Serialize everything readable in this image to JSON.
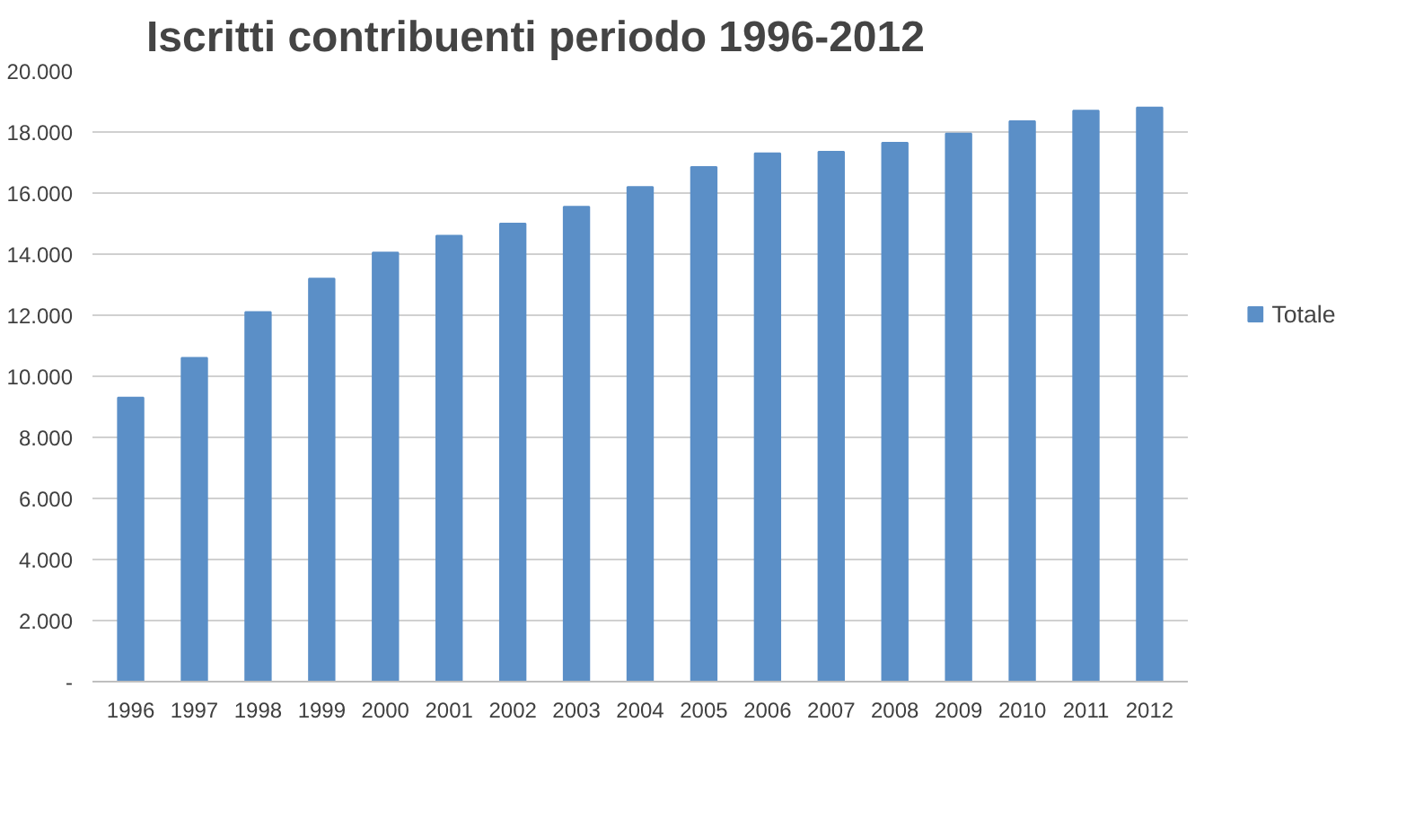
{
  "chart_data": {
    "type": "bar",
    "title": "Iscritti contribuenti periodo 1996-2012",
    "categories": [
      "1996",
      "1997",
      "1998",
      "1999",
      "2000",
      "2001",
      "2002",
      "2003",
      "2004",
      "2005",
      "2006",
      "2007",
      "2008",
      "2009",
      "2010",
      "2011",
      "2012"
    ],
    "series": [
      {
        "name": "Totale",
        "color": "#5b8fc7",
        "values": [
          9300,
          10600,
          12100,
          13200,
          14050,
          14600,
          15000,
          15550,
          16200,
          16850,
          17300,
          17350,
          17650,
          17950,
          18350,
          18700,
          18800
        ]
      }
    ],
    "ylim": [
      0,
      20000
    ],
    "yticks": [
      {
        "value": 0,
        "label": "-"
      },
      {
        "value": 2000,
        "label": "2.000"
      },
      {
        "value": 4000,
        "label": "4.000"
      },
      {
        "value": 6000,
        "label": "6.000"
      },
      {
        "value": 8000,
        "label": "8.000"
      },
      {
        "value": 10000,
        "label": "10.000"
      },
      {
        "value": 12000,
        "label": "12.000"
      },
      {
        "value": 14000,
        "label": "14.000"
      },
      {
        "value": 16000,
        "label": "16.000"
      },
      {
        "value": 18000,
        "label": "18.000"
      },
      {
        "value": 20000,
        "label": "20.000"
      }
    ],
    "grid": "y",
    "legend": "right"
  }
}
